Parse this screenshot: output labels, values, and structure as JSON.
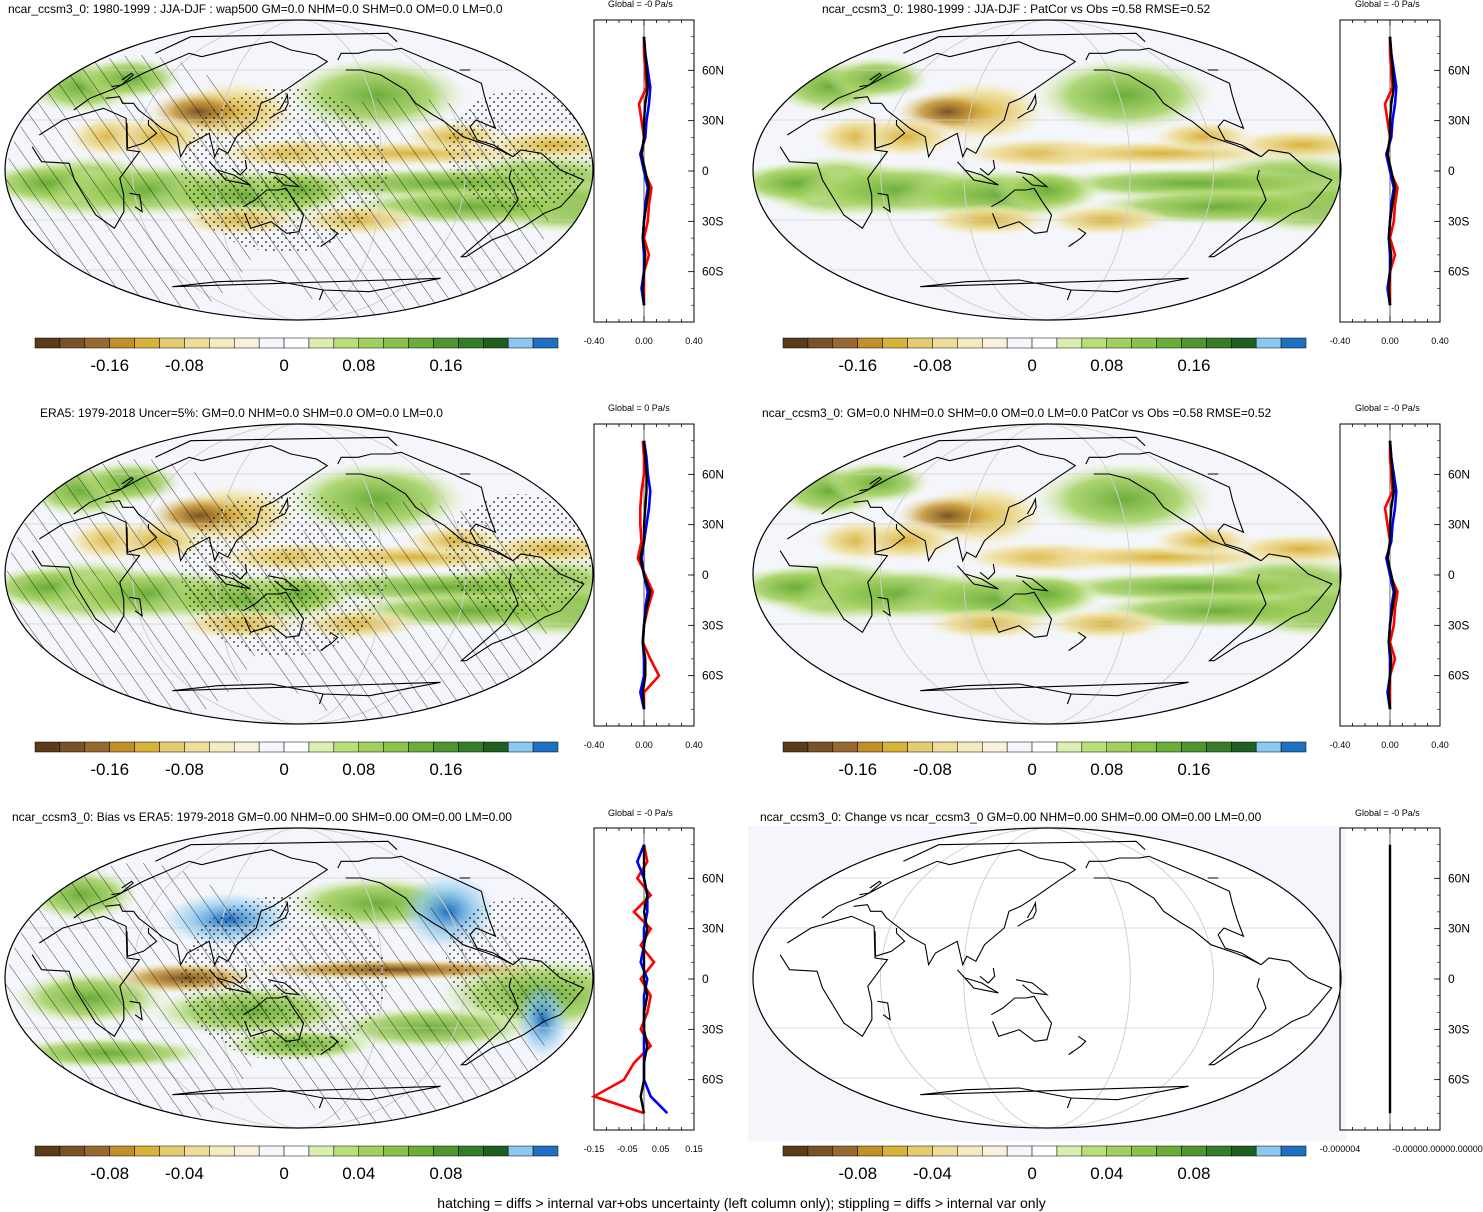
{
  "footer_note": "hatching = diffs > internal var+obs uncertainty (left column only); stippling = diffs > internal var only",
  "colors": {
    "palette": [
      "#5b3b1a",
      "#7a5228",
      "#97682f",
      "#c1902a",
      "#d7b23b",
      "#e5cc71",
      "#efde9b",
      "#f4ebc1",
      "#f8f2dc",
      "#f4f6fb",
      "#ffffff",
      "#dcefb2",
      "#b9de7a",
      "#a2d05e",
      "#8bc34a",
      "#6cad3a",
      "#4f9630",
      "#357d28",
      "#1f5f21",
      "#8cc8ee",
      "#1f70c1"
    ],
    "ocean": "#f4f6fb",
    "zonal_obs": "#ff0000",
    "zonal_model": "#0000ff",
    "zonal_diff": "#000000"
  },
  "chart_data": [
    {
      "type": "heatmap",
      "panel": "row1-left",
      "title": "ncar_ccsm3_0: 1980-1999 : JJA-DJF : wap500 GM=0.0 NHM=0.0 SHM=0.0 OM=0.0 LM=0.0",
      "colorbar_labels": [
        "-0.16",
        "-0.08",
        "0",
        "0.08",
        "0.16"
      ],
      "overlay": "hatching + stippling",
      "zonal_mean": {
        "title": "Global = -0 Pa/s",
        "x_tick_labels": [
          "-0.40",
          "0.00",
          "0.40"
        ],
        "xlim": [
          -0.4,
          0.4
        ],
        "lat_tick_labels": [
          "60N",
          "30N",
          "0",
          "30S",
          "60S"
        ],
        "lat_ticks": [
          60,
          30,
          0,
          -30,
          -60
        ],
        "lat": [
          80,
          70,
          60,
          50,
          40,
          30,
          20,
          10,
          0,
          -10,
          -20,
          -30,
          -40,
          -50,
          -60,
          -70,
          -80
        ],
        "series": [
          {
            "color": "#ff0000",
            "values": [
              0.0,
              0.0,
              0.01,
              0.02,
              -0.04,
              -0.02,
              0.0,
              -0.02,
              0.0,
              0.06,
              0.04,
              0.03,
              0.0,
              0.04,
              0.0,
              0.0,
              0.0
            ]
          },
          {
            "color": "#0000ff",
            "values": [
              0.0,
              0.01,
              0.03,
              0.05,
              0.04,
              0.02,
              0.01,
              -0.03,
              0.0,
              0.03,
              0.01,
              0.0,
              -0.01,
              0.0,
              0.0,
              -0.02,
              0.0
            ]
          },
          {
            "color": "#000000",
            "values": [
              0.0,
              0.01,
              0.02,
              0.03,
              0.01,
              0.0,
              0.0,
              -0.02,
              0.01,
              0.04,
              0.02,
              0.0,
              -0.01,
              0.01,
              0.0,
              -0.01,
              0.0
            ]
          }
        ]
      }
    },
    {
      "type": "heatmap",
      "panel": "row1-right",
      "title": "ncar_ccsm3_0: 1980-1999 : JJA-DJF : PatCor vs Obs =0.58 RMSE=0.52",
      "colorbar_labels": [
        "-0.16",
        "-0.08",
        "0",
        "0.08",
        "0.16"
      ],
      "overlay": "none",
      "zonal_mean": {
        "title": "Global = -0 Pa/s",
        "x_tick_labels": [
          "-0.40",
          "0.00",
          "0.40"
        ],
        "xlim": [
          -0.4,
          0.4
        ],
        "lat_tick_labels": [
          "60N",
          "30N",
          "0",
          "30S",
          "60S"
        ],
        "lat_ticks": [
          60,
          30,
          0,
          -30,
          -60
        ],
        "lat": [
          80,
          70,
          60,
          50,
          40,
          30,
          20,
          10,
          0,
          -10,
          -20,
          -30,
          -40,
          -50,
          -60,
          -70,
          -80
        ],
        "series": [
          {
            "color": "#ff0000",
            "values": [
              0.0,
              0.0,
              0.01,
              0.02,
              -0.04,
              -0.02,
              0.0,
              -0.02,
              0.0,
              0.06,
              0.04,
              0.03,
              0.0,
              0.04,
              0.0,
              0.0,
              0.0
            ]
          },
          {
            "color": "#0000ff",
            "values": [
              0.0,
              0.01,
              0.03,
              0.05,
              0.04,
              0.02,
              0.01,
              -0.03,
              0.0,
              0.03,
              0.01,
              0.0,
              -0.01,
              0.0,
              0.0,
              -0.02,
              0.0
            ]
          },
          {
            "color": "#000000",
            "values": [
              0.0,
              0.01,
              0.02,
              0.03,
              0.01,
              0.0,
              0.0,
              -0.02,
              0.01,
              0.04,
              0.02,
              0.0,
              -0.01,
              0.01,
              0.0,
              -0.01,
              0.0
            ]
          }
        ]
      }
    },
    {
      "type": "heatmap",
      "panel": "row2-left",
      "title": "ERA5: 1979-2018 Uncer=5%: GM=0.0 NHM=0.0 SHM=0.0 OM=0.0 LM=0.0",
      "colorbar_labels": [
        "-0.16",
        "-0.08",
        "0",
        "0.08",
        "0.16"
      ],
      "overlay": "hatching + stippling",
      "zonal_mean": {
        "title": "Global = 0 Pa/s",
        "x_tick_labels": [
          "-0.40",
          "0.00",
          "0.40"
        ],
        "xlim": [
          -0.4,
          0.4
        ],
        "lat_tick_labels": [
          "60N",
          "30N",
          "0",
          "30S",
          "60S"
        ],
        "lat_ticks": [
          60,
          30,
          0,
          -30,
          -60
        ],
        "lat": [
          80,
          70,
          60,
          50,
          40,
          30,
          20,
          10,
          0,
          -10,
          -20,
          -30,
          -40,
          -50,
          -60,
          -70,
          -80
        ],
        "series": [
          {
            "color": "#ff0000",
            "values": [
              -0.01,
              0.0,
              0.0,
              -0.02,
              -0.03,
              -0.03,
              -0.02,
              -0.05,
              0.01,
              0.07,
              0.03,
              0.0,
              -0.01,
              0.05,
              0.12,
              0.0,
              0.0
            ]
          },
          {
            "color": "#0000ff",
            "values": [
              0.0,
              0.02,
              0.03,
              0.05,
              0.04,
              0.02,
              0.0,
              -0.02,
              0.0,
              0.03,
              0.01,
              0.0,
              -0.01,
              0.0,
              0.0,
              -0.03,
              0.0
            ]
          },
          {
            "color": "#000000",
            "values": [
              0.0,
              0.01,
              0.02,
              0.02,
              0.01,
              0.0,
              0.0,
              -0.03,
              0.0,
              0.05,
              0.02,
              0.0,
              -0.01,
              0.01,
              0.01,
              -0.01,
              0.0
            ]
          }
        ]
      }
    },
    {
      "type": "heatmap",
      "panel": "row2-right",
      "title": "ncar_ccsm3_0: GM=0.0 NHM=0.0 SHM=0.0 OM=0.0 LM=0.0 PatCor vs Obs =0.58 RMSE=0.52",
      "colorbar_labels": [
        "-0.16",
        "-0.08",
        "0",
        "0.08",
        "0.16"
      ],
      "overlay": "none",
      "zonal_mean": {
        "title": "Global = -0 Pa/s",
        "x_tick_labels": [
          "-0.40",
          "0.00",
          "0.40"
        ],
        "xlim": [
          -0.4,
          0.4
        ],
        "lat_tick_labels": [
          "60N",
          "30N",
          "0",
          "30S",
          "60S"
        ],
        "lat_ticks": [
          60,
          30,
          0,
          -30,
          -60
        ],
        "lat": [
          80,
          70,
          60,
          50,
          40,
          30,
          20,
          10,
          0,
          -10,
          -20,
          -30,
          -40,
          -50,
          -60,
          -70,
          -80
        ],
        "series": [
          {
            "color": "#ff0000",
            "values": [
              0.0,
              0.0,
              0.01,
              0.02,
              -0.04,
              -0.02,
              0.0,
              -0.02,
              0.0,
              0.06,
              0.04,
              0.03,
              0.0,
              0.04,
              0.0,
              0.0,
              0.0
            ]
          },
          {
            "color": "#0000ff",
            "values": [
              0.0,
              0.01,
              0.03,
              0.05,
              0.04,
              0.02,
              0.01,
              -0.03,
              0.0,
              0.03,
              0.01,
              0.0,
              -0.01,
              0.0,
              0.0,
              -0.02,
              0.0
            ]
          },
          {
            "color": "#000000",
            "values": [
              0.0,
              0.01,
              0.02,
              0.03,
              0.01,
              0.0,
              0.0,
              -0.02,
              0.01,
              0.04,
              0.02,
              0.0,
              -0.01,
              0.01,
              0.0,
              -0.01,
              0.0
            ]
          }
        ]
      }
    },
    {
      "type": "heatmap",
      "panel": "row3-left",
      "title": "ncar_ccsm3_0: Bias vs ERA5: 1979-2018 GM=0.00 NHM=0.00 SHM=0.00 OM=0.00 LM=0.00",
      "colorbar_labels": [
        "-0.08",
        "-0.04",
        "0",
        "0.04",
        "0.08"
      ],
      "overlay": "hatching + stippling",
      "zonal_mean": {
        "title": "Global = -0 Pa/s",
        "x_tick_labels": [
          "-0.15",
          "-0.05",
          "0.05",
          "0.15"
        ],
        "xlim": [
          -0.15,
          0.15
        ],
        "lat_tick_labels": [
          "60N",
          "30N",
          "0",
          "30S",
          "60S"
        ],
        "lat_ticks": [
          60,
          30,
          0,
          -30,
          -60
        ],
        "lat": [
          80,
          70,
          60,
          50,
          40,
          30,
          20,
          10,
          0,
          -10,
          -20,
          -30,
          -40,
          -50,
          -60,
          -70,
          -80
        ],
        "series": [
          {
            "color": "#ff0000",
            "values": [
              0.0,
              0.01,
              -0.02,
              0.02,
              -0.03,
              0.02,
              -0.01,
              0.03,
              -0.01,
              0.02,
              0.01,
              -0.01,
              0.02,
              -0.03,
              -0.06,
              -0.15,
              0.0
            ]
          },
          {
            "color": "#0000ff",
            "values": [
              0.0,
              -0.02,
              0.0,
              0.01,
              0.01,
              0.0,
              0.0,
              -0.01,
              0.01,
              0.0,
              0.0,
              0.0,
              0.0,
              0.0,
              0.0,
              0.02,
              0.07
            ]
          },
          {
            "color": "#000000",
            "values": [
              0.0,
              0.0,
              0.0,
              0.01,
              0.0,
              0.01,
              0.0,
              0.0,
              0.0,
              0.01,
              0.0,
              0.0,
              0.01,
              0.0,
              0.0,
              -0.01,
              0.0
            ]
          }
        ]
      }
    },
    {
      "type": "heatmap",
      "panel": "row3-right",
      "title": "ncar_ccsm3_0: Change vs ncar_ccsm3_0 GM=0.00 NHM=0.00 SHM=0.00 OM=0.00 LM=0.00",
      "colorbar_labels": [
        "-0.08",
        "-0.04",
        "0",
        "0.04",
        "0.08"
      ],
      "overlay": "none",
      "zonal_mean": {
        "title": "Global = -0 Pa/s",
        "x_tick_labels": [
          "-0.000004",
          "-0.00000.00000.000004"
        ],
        "xlim": [
          -4e-06,
          4e-06
        ],
        "lat_tick_labels": [
          "60N",
          "30N",
          "0",
          "30S",
          "60S"
        ],
        "lat_ticks": [
          60,
          30,
          0,
          -30,
          -60
        ],
        "lat": [
          80,
          70,
          60,
          50,
          40,
          30,
          20,
          10,
          0,
          -10,
          -20,
          -30,
          -40,
          -50,
          -60,
          -70,
          -80
        ],
        "series": [
          {
            "color": "#000000",
            "values": [
              0,
              0,
              0,
              0,
              0,
              0,
              0,
              0,
              0,
              0,
              0,
              0,
              0,
              0,
              0,
              0,
              0
            ]
          }
        ]
      }
    }
  ]
}
